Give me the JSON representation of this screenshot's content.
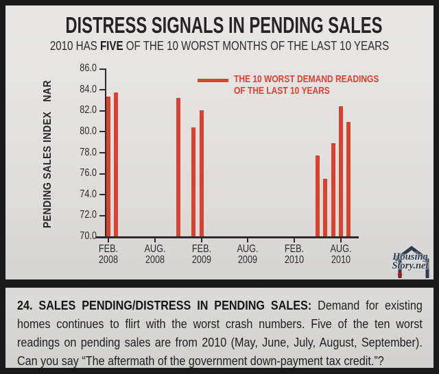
{
  "colors": {
    "accent_red": "#d8422f",
    "logo_navy": "#2e3d4e",
    "logo_dot_red": "#b5121b",
    "panel_gray": "#e1e0de",
    "frame_dark": "#191919"
  },
  "header": {
    "title": "DISTRESS SIGNALS IN PENDING SALES",
    "subtitle_prefix": "2010 HAS ",
    "subtitle_bold": "FIVE",
    "subtitle_suffix": " OF THE 10 WORST MONTHS OF THE LAST 10 YEARS"
  },
  "chart_data": {
    "type": "bar",
    "title": "DISTRESS SIGNALS IN PENDING SALES",
    "ylabel": "PENDING SALES INDEX",
    "ylabel_unit": "NAR",
    "ylim": [
      70,
      86
    ],
    "ytick_labels": [
      "86.0",
      "84.0",
      "82.0",
      "80.0",
      "78.0",
      "76.0",
      "74.0",
      "72.0",
      "70.0"
    ],
    "grid": false,
    "bar_color": "#d8422f",
    "legend": {
      "position": "top-center",
      "line1": "THE 10 WORST DEMAND READINGS",
      "line2": "OF THE LAST 10 YEARS"
    },
    "x_axis_ticks": [
      {
        "label1": "FEB.",
        "label2": "2008",
        "m": 0
      },
      {
        "label1": "AUG.",
        "label2": "2008",
        "m": 6
      },
      {
        "label1": "FEB.",
        "label2": "2009",
        "m": 12
      },
      {
        "label1": "AUG.",
        "label2": "2009",
        "m": 18
      },
      {
        "label1": "FEB.",
        "label2": "2010",
        "m": 24
      },
      {
        "label1": "AUG.",
        "label2": "2010",
        "m": 30
      }
    ],
    "points": [
      {
        "month": "Feb 2008",
        "m": 0,
        "value": 83.3
      },
      {
        "month": "Mar 2008",
        "m": 1,
        "value": 83.7
      },
      {
        "month": "Nov 2008",
        "m": 9,
        "value": 83.2
      },
      {
        "month": "Jan 2009",
        "m": 11,
        "value": 80.4
      },
      {
        "month": "Feb 2009",
        "m": 12,
        "value": 82.0
      },
      {
        "month": "May 2010",
        "m": 27,
        "value": 77.7
      },
      {
        "month": "Jun 2010",
        "m": 28,
        "value": 75.5
      },
      {
        "month": "Jul 2010",
        "m": 29,
        "value": 78.9
      },
      {
        "month": "Aug 2010",
        "m": 30,
        "value": 82.4
      },
      {
        "month": "Sep 2010",
        "m": 31,
        "value": 80.9
      }
    ]
  },
  "logo": {
    "line1": "Housing",
    "line2": "Story.net"
  },
  "footer": {
    "caption_bold": "24. SALES PENDING/DISTRESS IN PENDING SALES:",
    "caption_rest": " Demand for existing homes continues to flirt with the worst crash numbers. Five of the ten worst readings on pending sales are from 2010 (May, June, July, August, September). Can you say “The aftermath of the government down-payment tax credit.”?"
  }
}
